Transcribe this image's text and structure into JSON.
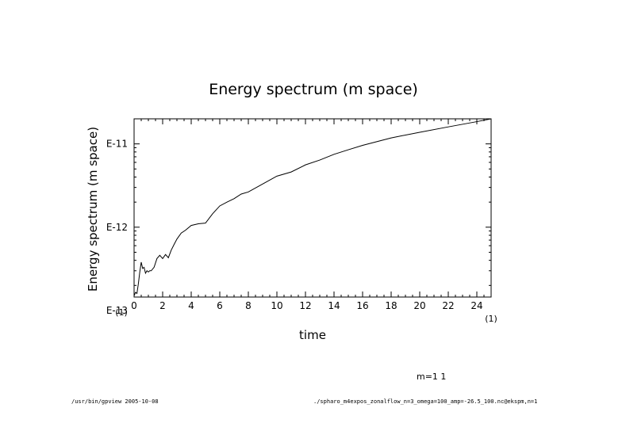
{
  "chart_data": {
    "type": "line",
    "title": "Energy spectrum (m space)",
    "xlabel": "time",
    "ylabel": "Energy spectrum (m space)",
    "x_scale_note_left": "(1)",
    "x_scale_note_right": "(1)",
    "xlim": [
      0,
      25
    ],
    "x_ticks": [
      0,
      2,
      4,
      6,
      8,
      10,
      12,
      14,
      16,
      18,
      20,
      22,
      24
    ],
    "y_scale": "log",
    "ylim": [
      1.45e-13,
      2e-11
    ],
    "y_ticks": [
      {
        "value": 1e-13,
        "label": "E-13"
      },
      {
        "value": 1e-12,
        "label": "E-12"
      },
      {
        "value": 1e-11,
        "label": "E-11"
      }
    ],
    "series": [
      {
        "x": [
          0,
          0.1,
          0.2,
          0.3,
          0.4,
          0.5,
          0.6,
          0.7,
          0.8,
          0.9,
          1.0,
          1.1,
          1.2,
          1.4,
          1.6,
          1.8,
          2.0,
          2.2,
          2.4,
          2.6,
          2.8,
          3.0,
          3.3,
          3.6,
          4.0,
          4.5,
          5.0,
          5.5,
          6.0,
          6.5,
          7.0,
          7.5,
          8.0,
          9.0,
          10.0,
          11.0,
          12.0,
          13.0,
          14.0,
          15.0,
          16.0,
          18.0,
          20.0,
          22.0,
          24.0,
          25.0
        ],
        "y": [
          1.5e-13,
          1.65e-13,
          1.6e-13,
          2.1e-13,
          2.9e-13,
          3.8e-13,
          3.2e-13,
          3.3e-13,
          2.8e-13,
          3e-13,
          2.9e-13,
          3e-13,
          3e-13,
          3.3e-13,
          4.2e-13,
          4.6e-13,
          4.2e-13,
          4.7e-13,
          4.3e-13,
          5.3e-13,
          6.2e-13,
          7.2e-13,
          8.5e-13,
          9.2e-13,
          1.05e-12,
          1.1e-12,
          1.12e-12,
          1.45e-12,
          1.8e-12,
          2e-12,
          2.2e-12,
          2.5e-12,
          2.65e-12,
          3.3e-12,
          4.1e-12,
          4.6e-12,
          5.6e-12,
          6.4e-12,
          7.5e-12,
          8.5e-12,
          9.6e-12,
          1.18e-11,
          1.38e-11,
          1.6e-11,
          1.85e-11,
          2e-11
        ]
      }
    ]
  },
  "annotation": "m=1 1",
  "footer": {
    "left": "/usr/bin/gpview  2005-10-08",
    "right": "./spharo_m4expos_zonalflow_n=3_omega=100_amp=-26.5_100.nc@ekspm,n=1"
  }
}
